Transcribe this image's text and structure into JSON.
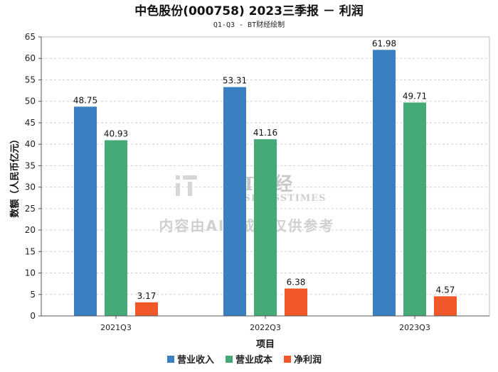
{
  "chart_data": {
    "type": "bar",
    "title": "中色股份(000758) 2023三季报 － 利润",
    "subtitle": "Q1-Q3 - BT财经绘制",
    "xlabel": "项目",
    "ylabel": "数额（人民币亿元）",
    "ylim": [
      0,
      65
    ],
    "yticks": [
      0,
      5,
      10,
      15,
      20,
      25,
      30,
      35,
      40,
      45,
      50,
      55,
      60,
      65
    ],
    "grid": true,
    "legend_position": "bottom",
    "categories": [
      "2021Q3",
      "2022Q3",
      "2023Q3"
    ],
    "series": [
      {
        "name": "营业收入",
        "color": "#3a7fc1",
        "values": [
          48.75,
          53.31,
          61.98
        ]
      },
      {
        "name": "营业成本",
        "color": "#45aa78",
        "values": [
          40.93,
          41.16,
          49.71
        ]
      },
      {
        "name": "净利润",
        "color": "#f0582a",
        "values": [
          3.17,
          6.38,
          4.57
        ]
      }
    ],
    "value_labels": [
      [
        "48.75",
        "53.31",
        "61.98"
      ],
      [
        "40.93",
        "41.16",
        "49.71"
      ],
      [
        "3.17",
        "6.38",
        "4.57"
      ]
    ]
  },
  "watermark": {
    "logo_text": "BT财经",
    "logo_sub": "BUSINESSTIMES",
    "notice": "内容由AI生成，仅供参考"
  }
}
